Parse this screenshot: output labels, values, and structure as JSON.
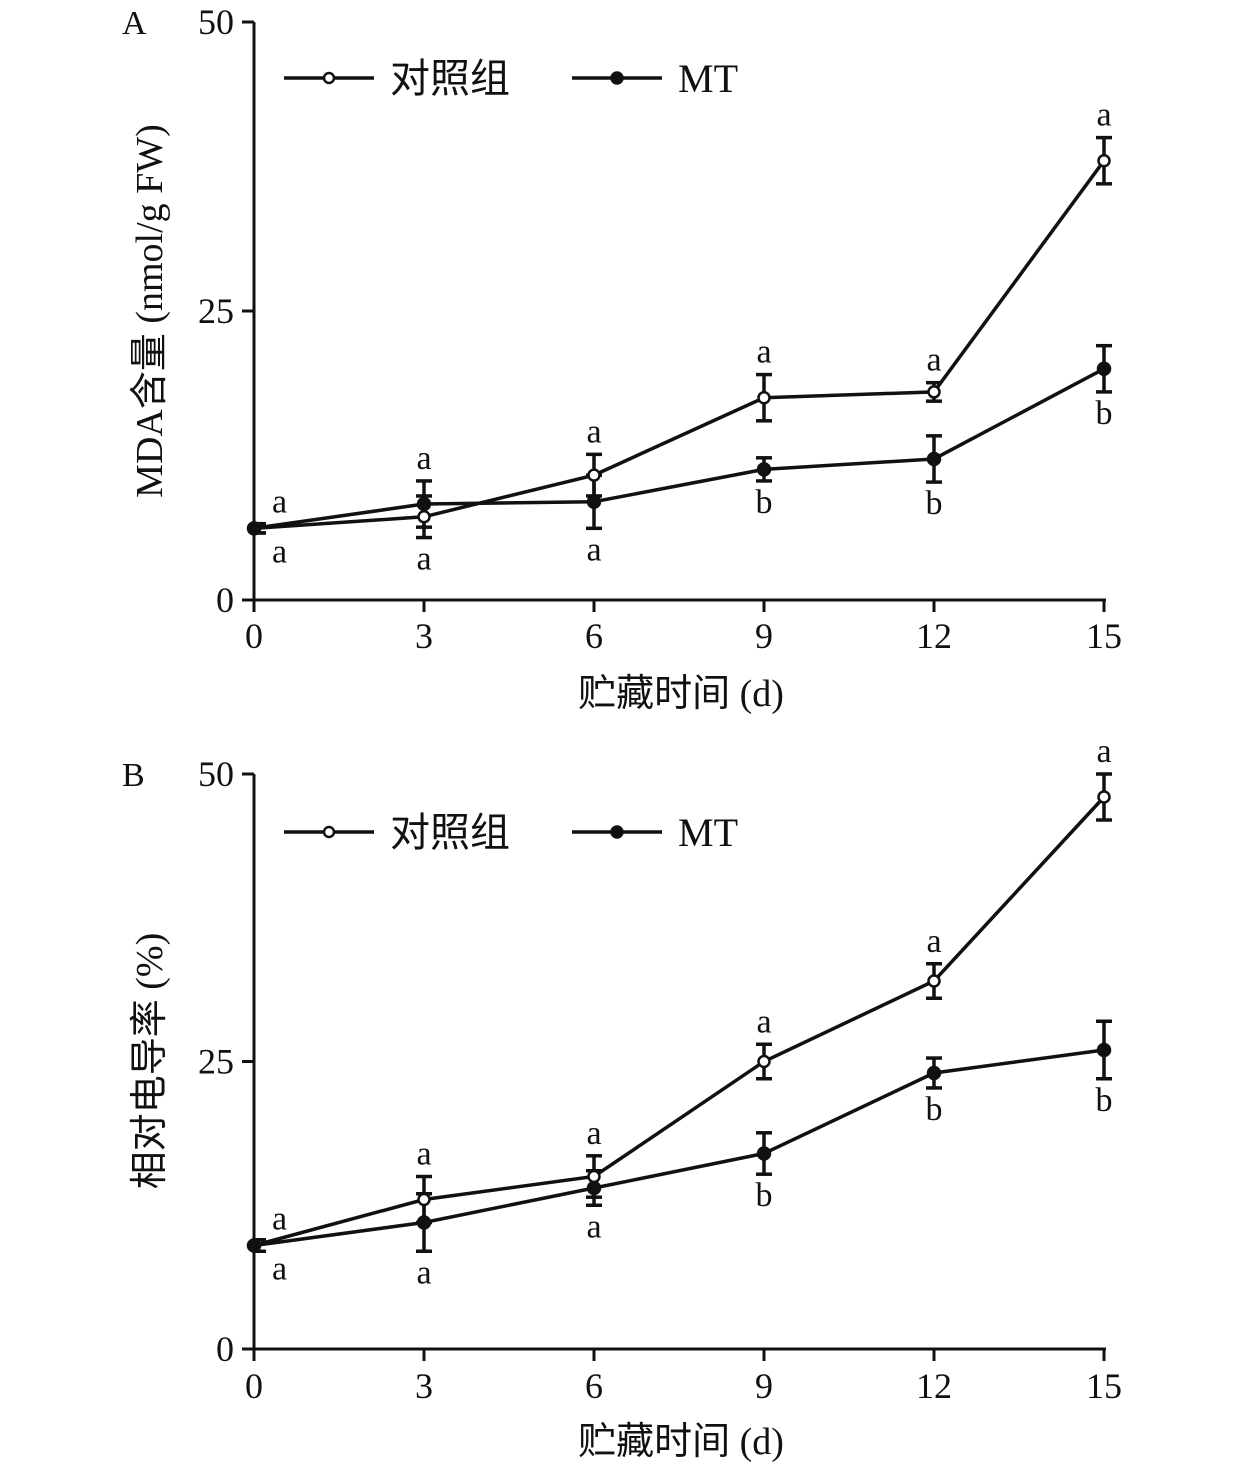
{
  "colors": {
    "ink": "#111111",
    "background": "#ffffff",
    "open_marker_fill": "#ffffff"
  },
  "chart_data": [
    {
      "panel": "A",
      "type": "line",
      "xlabel": "贮藏时间 (d)",
      "ylabel": "MDA含量 (nmol/g FW)",
      "x": [
        0,
        3,
        6,
        9,
        12,
        15
      ],
      "x_ticks": [
        "0",
        "3",
        "6",
        "9",
        "12",
        "15"
      ],
      "y_ticks": [
        "0",
        "25",
        "50"
      ],
      "xlim": [
        0,
        15
      ],
      "ylim": [
        0,
        50
      ],
      "legend_position": "top-left",
      "series": [
        {
          "name": "对照组",
          "marker": "open-circle",
          "values": [
            6.2,
            7.2,
            10.8,
            17.5,
            18.0,
            38.0
          ],
          "errors": [
            0.4,
            1.8,
            1.8,
            2.0,
            0.8,
            2.0
          ],
          "labels": [
            "a",
            "a",
            "a",
            "a",
            "a",
            "a"
          ]
        },
        {
          "name": "MT",
          "marker": "filled-circle",
          "values": [
            6.2,
            8.3,
            8.5,
            11.3,
            12.2,
            20.0
          ],
          "errors": [
            0.4,
            2.0,
            2.3,
            1.0,
            2.0,
            2.0
          ],
          "labels": [
            "a",
            "a",
            "a",
            "b",
            "b",
            "b"
          ]
        }
      ]
    },
    {
      "panel": "B",
      "type": "line",
      "xlabel": "贮藏时间 (d)",
      "ylabel": "相对电导率 (%)",
      "x": [
        0,
        3,
        6,
        9,
        12,
        15
      ],
      "x_ticks": [
        "0",
        "3",
        "6",
        "9",
        "12",
        "15"
      ],
      "y_ticks": [
        "0",
        "25",
        "50"
      ],
      "xlim": [
        0,
        15
      ],
      "ylim": [
        0,
        50
      ],
      "legend_position": "top-left",
      "series": [
        {
          "name": "对照组",
          "marker": "open-circle",
          "values": [
            9.0,
            13.0,
            15.0,
            25.0,
            32.0,
            48.0
          ],
          "errors": [
            0.5,
            2.0,
            1.8,
            1.5,
            1.5,
            2.0
          ],
          "labels": [
            "a",
            "a",
            "a",
            "a",
            "a",
            "a"
          ]
        },
        {
          "name": "MT",
          "marker": "filled-circle",
          "values": [
            9.0,
            11.0,
            14.0,
            17.0,
            24.0,
            26.0
          ],
          "errors": [
            0.5,
            2.5,
            1.5,
            1.8,
            1.3,
            2.5
          ],
          "labels": [
            "a",
            "a",
            "a",
            "b",
            "b",
            "b"
          ]
        }
      ]
    }
  ]
}
